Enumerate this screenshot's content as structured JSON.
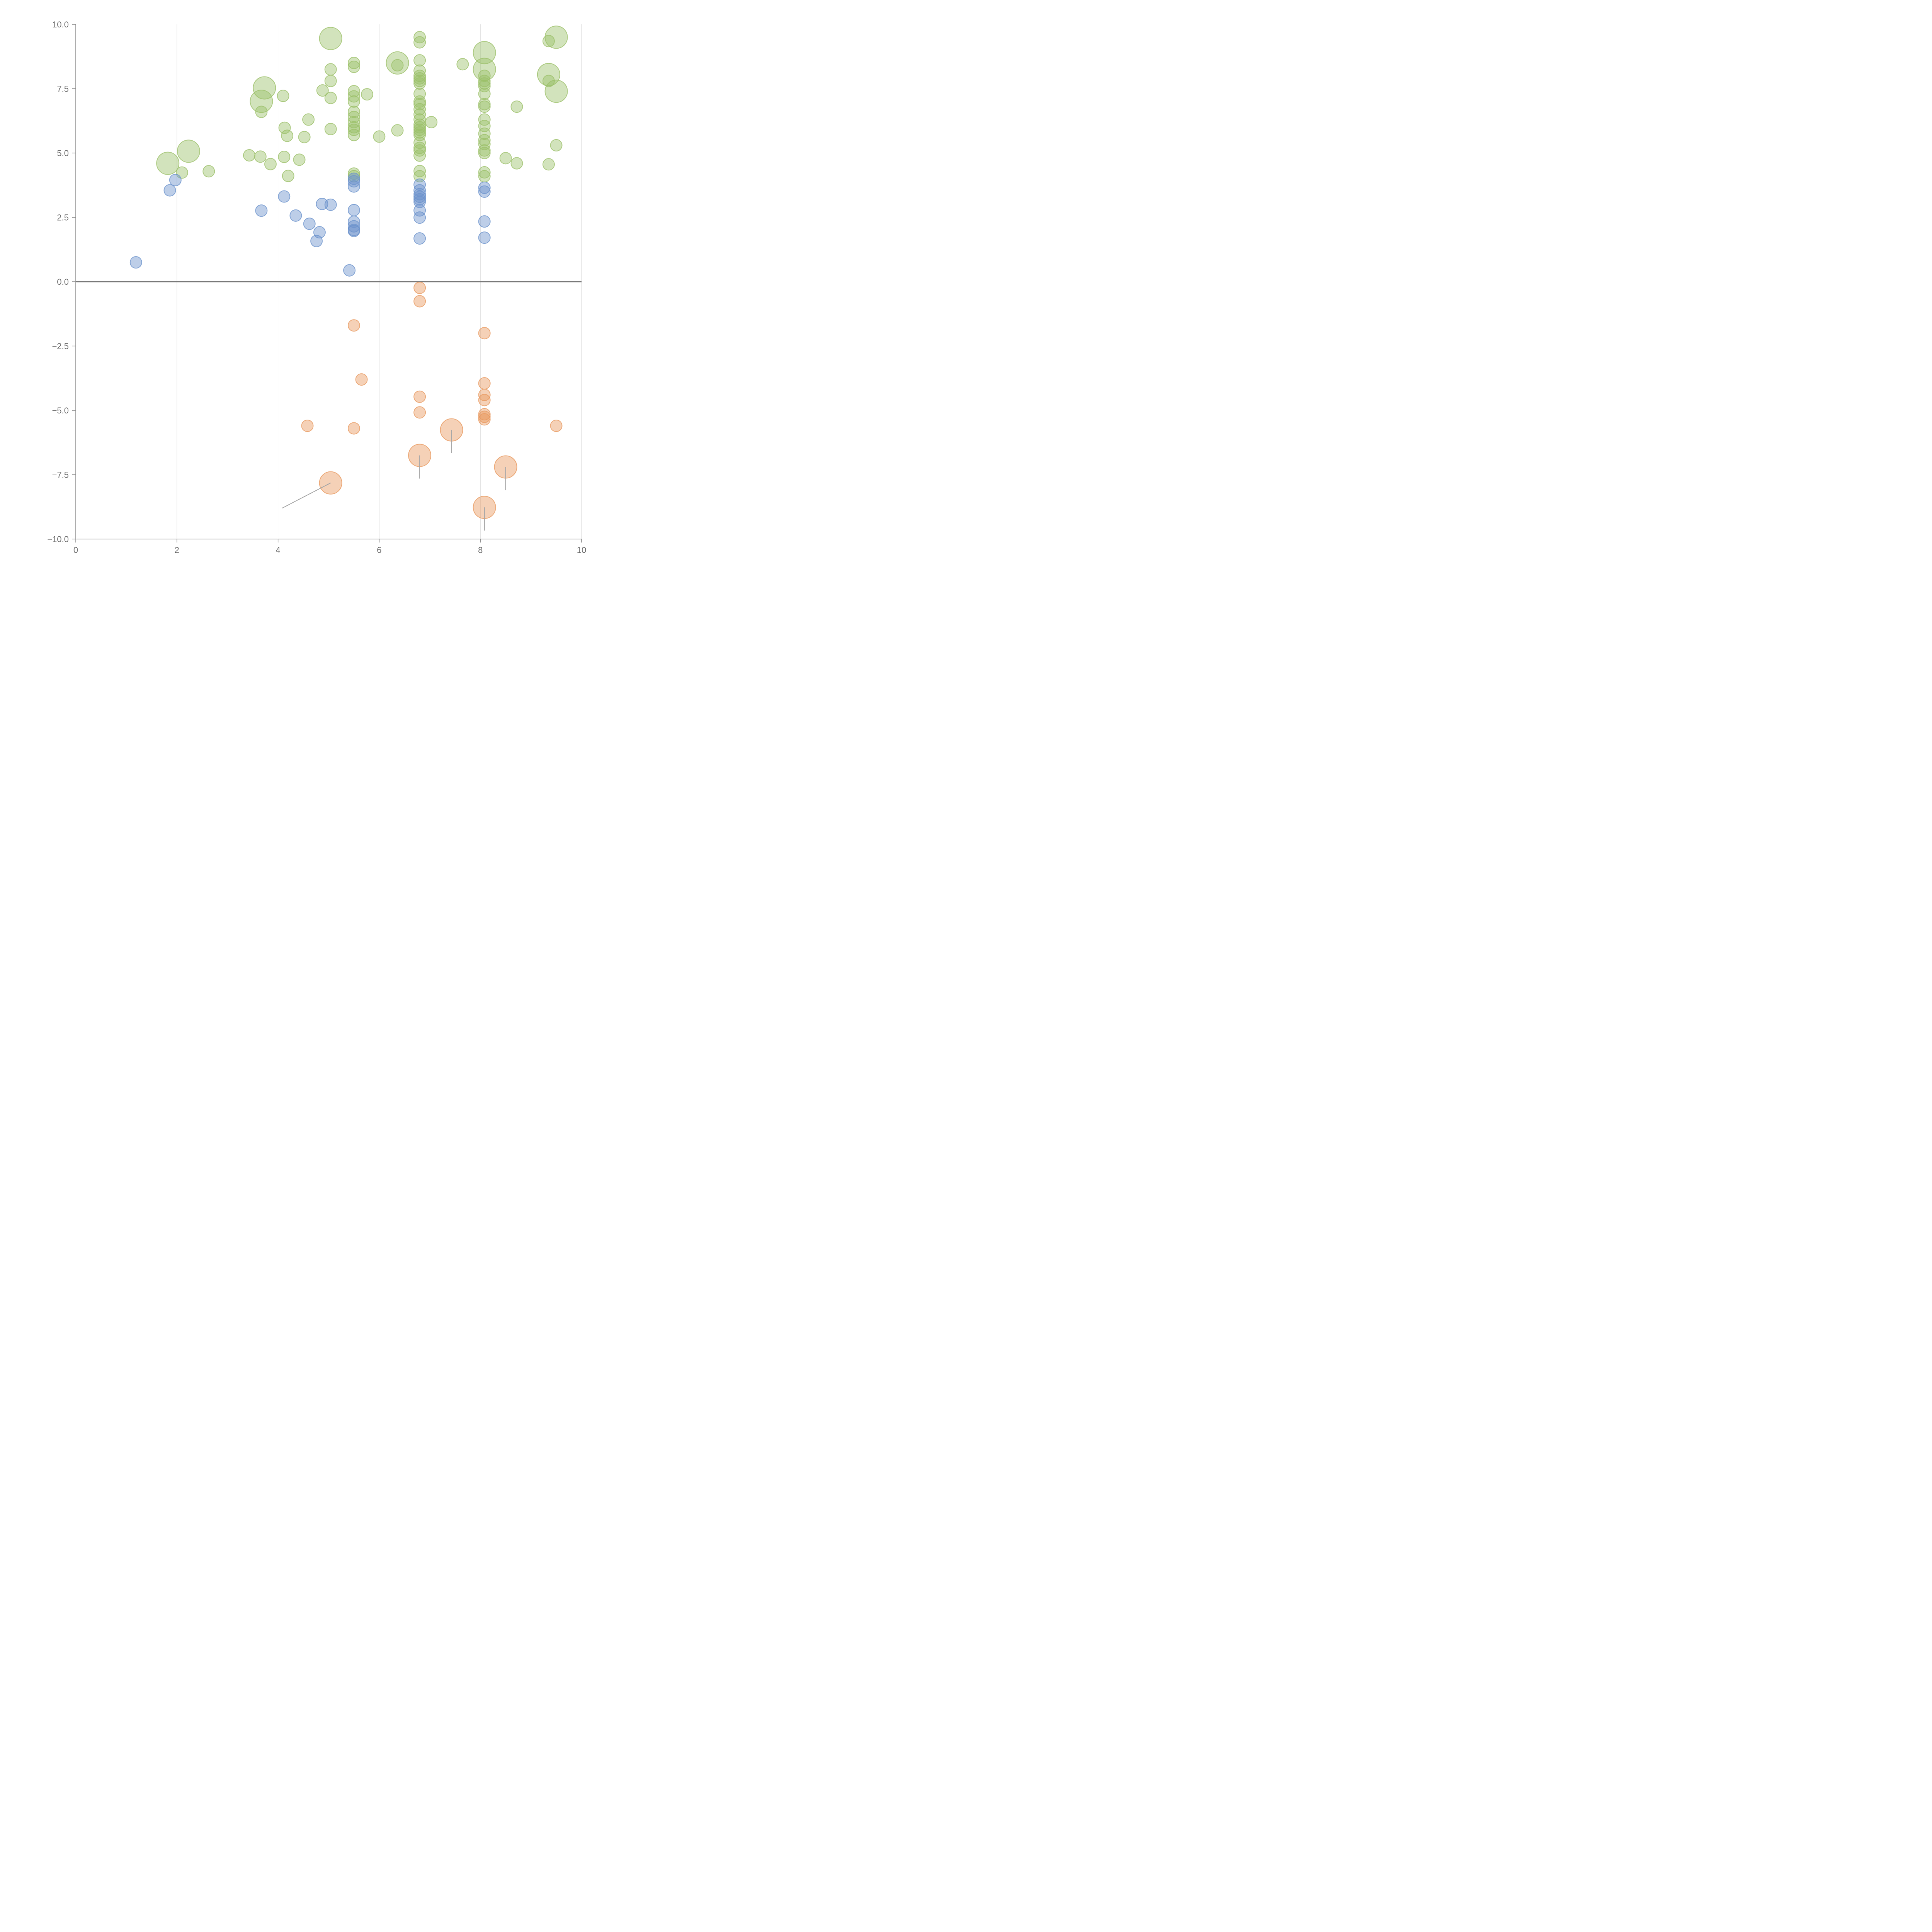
{
  "chart_data": {
    "type": "scatter",
    "title": "",
    "xlabel": "",
    "ylabel": "",
    "xlim": [
      0,
      10
    ],
    "ylim": [
      -10,
      10
    ],
    "x_ticks": [
      0,
      2,
      4,
      6,
      8,
      10
    ],
    "y_ticks": [
      -10,
      -7.5,
      -5,
      -2.5,
      0,
      2.5,
      5,
      7.5,
      10
    ],
    "x_tick_labels": [
      "0",
      "2",
      "4",
      "6",
      "8",
      "10"
    ],
    "y_tick_labels": [
      "−10.0",
      "−7.5",
      "−5.0",
      "−2.5",
      "0.0",
      "2.5",
      "5.0",
      "7.5",
      "10.0"
    ],
    "grid": "vertical lines at x ticks",
    "legend": "none",
    "zero_line": true,
    "colors": {
      "green": "#9cc06a",
      "blue": "#6c93cc",
      "orange": "#e89a60",
      "grid": "#d8d8d8",
      "axis": "#8a8a8a",
      "tick_text": "#6f6f6f"
    },
    "series": [
      {
        "color_key": "green",
        "points": [
          [
            1.82,
            4.6,
            2
          ],
          [
            2.23,
            5.07,
            2
          ],
          [
            2.1,
            4.24,
            1
          ],
          [
            2.63,
            4.29,
            1
          ],
          [
            3.43,
            4.91,
            1
          ],
          [
            3.65,
            4.86,
            1
          ],
          [
            3.85,
            4.57,
            1
          ],
          [
            3.67,
            6.6,
            1
          ],
          [
            3.67,
            7.01,
            2
          ],
          [
            3.73,
            7.53,
            2
          ],
          [
            4.1,
            7.22,
            1
          ],
          [
            4.12,
            4.85,
            1
          ],
          [
            4.2,
            4.11,
            1
          ],
          [
            4.13,
            5.98,
            1
          ],
          [
            4.18,
            5.67,
            1
          ],
          [
            4.42,
            4.74,
            1
          ],
          [
            4.52,
            5.62,
            1
          ],
          [
            4.6,
            6.3,
            1
          ],
          [
            4.88,
            7.43,
            1
          ],
          [
            5.04,
            9.45,
            2
          ],
          [
            5.04,
            8.25,
            1
          ],
          [
            5.04,
            7.8,
            1
          ],
          [
            5.04,
            7.14,
            1
          ],
          [
            5.04,
            5.93,
            1
          ],
          [
            5.5,
            8.5,
            1
          ],
          [
            5.5,
            8.35,
            1
          ],
          [
            5.5,
            7.4,
            1
          ],
          [
            5.5,
            7.2,
            1
          ],
          [
            5.5,
            7.0,
            1
          ],
          [
            5.5,
            6.6,
            1
          ],
          [
            5.5,
            6.4,
            1
          ],
          [
            5.5,
            6.2,
            1
          ],
          [
            5.5,
            6.0,
            1
          ],
          [
            5.5,
            5.9,
            1
          ],
          [
            5.5,
            5.7,
            1
          ],
          [
            5.5,
            4.2,
            1
          ],
          [
            5.5,
            4.1,
            1
          ],
          [
            5.76,
            7.28,
            1
          ],
          [
            6.0,
            5.64,
            1
          ],
          [
            6.36,
            8.5,
            2
          ],
          [
            6.36,
            8.41,
            1
          ],
          [
            6.36,
            5.88,
            1
          ],
          [
            6.8,
            9.5,
            1
          ],
          [
            6.8,
            9.3,
            1
          ],
          [
            6.8,
            8.6,
            1
          ],
          [
            6.8,
            8.2,
            1
          ],
          [
            6.8,
            8.0,
            1
          ],
          [
            6.8,
            7.9,
            1
          ],
          [
            6.8,
            7.8,
            1
          ],
          [
            6.8,
            7.7,
            1
          ],
          [
            6.8,
            7.3,
            1
          ],
          [
            6.8,
            7.0,
            1
          ],
          [
            6.8,
            6.9,
            1
          ],
          [
            6.8,
            6.7,
            1
          ],
          [
            6.8,
            6.5,
            1
          ],
          [
            6.8,
            6.3,
            1
          ],
          [
            6.8,
            6.1,
            1
          ],
          [
            6.8,
            6.0,
            1
          ],
          [
            6.8,
            5.9,
            1
          ],
          [
            6.8,
            5.8,
            1
          ],
          [
            6.8,
            5.7,
            1
          ],
          [
            6.8,
            5.4,
            1
          ],
          [
            6.8,
            5.2,
            1
          ],
          [
            6.8,
            5.1,
            1
          ],
          [
            6.8,
            4.9,
            1
          ],
          [
            6.8,
            4.3,
            1
          ],
          [
            6.8,
            4.1,
            1
          ],
          [
            7.03,
            6.2,
            1
          ],
          [
            7.65,
            8.45,
            1
          ],
          [
            8.08,
            8.9,
            2
          ],
          [
            8.08,
            8.25,
            2
          ],
          [
            8.08,
            8.0,
            1
          ],
          [
            8.08,
            7.8,
            1
          ],
          [
            8.08,
            7.7,
            1
          ],
          [
            8.08,
            7.6,
            1
          ],
          [
            8.08,
            7.3,
            1
          ],
          [
            8.08,
            6.9,
            1
          ],
          [
            8.08,
            6.8,
            1
          ],
          [
            8.08,
            6.3,
            1
          ],
          [
            8.08,
            6.05,
            1
          ],
          [
            8.08,
            5.75,
            1
          ],
          [
            8.08,
            5.5,
            1
          ],
          [
            8.08,
            5.35,
            1
          ],
          [
            8.08,
            5.1,
            1
          ],
          [
            8.08,
            5.0,
            1
          ],
          [
            8.08,
            4.25,
            1
          ],
          [
            8.08,
            4.1,
            1
          ],
          [
            8.5,
            4.8,
            1
          ],
          [
            8.72,
            4.6,
            1
          ],
          [
            8.72,
            6.8,
            1
          ],
          [
            9.35,
            9.35,
            1
          ],
          [
            9.35,
            8.05,
            2
          ],
          [
            9.35,
            7.8,
            1
          ],
          [
            9.35,
            4.56,
            1
          ],
          [
            9.5,
            9.5,
            2
          ],
          [
            9.5,
            7.4,
            2
          ],
          [
            9.5,
            5.3,
            1
          ]
        ]
      },
      {
        "color_key": "blue",
        "points": [
          [
            1.19,
            0.75,
            1
          ],
          [
            1.86,
            3.55,
            1
          ],
          [
            1.97,
            3.95,
            1
          ],
          [
            3.67,
            2.76,
            1
          ],
          [
            4.12,
            3.31,
            1
          ],
          [
            4.35,
            2.57,
            1
          ],
          [
            4.62,
            2.25,
            1
          ],
          [
            4.76,
            1.58,
            1
          ],
          [
            4.82,
            1.92,
            1
          ],
          [
            4.87,
            3.02,
            1
          ],
          [
            5.04,
            2.99,
            1
          ],
          [
            5.41,
            0.44,
            1
          ],
          [
            5.5,
            4.0,
            1
          ],
          [
            5.5,
            3.9,
            1
          ],
          [
            5.5,
            3.7,
            1
          ],
          [
            5.5,
            2.78,
            1
          ],
          [
            5.5,
            2.33,
            1
          ],
          [
            5.5,
            2.15,
            1
          ],
          [
            5.5,
            2.01,
            1
          ],
          [
            5.5,
            1.97,
            1
          ],
          [
            6.8,
            3.77,
            1
          ],
          [
            6.8,
            3.55,
            1
          ],
          [
            6.8,
            3.4,
            1
          ],
          [
            6.8,
            3.3,
            1
          ],
          [
            6.8,
            3.2,
            1
          ],
          [
            6.8,
            3.1,
            1
          ],
          [
            6.8,
            2.77,
            1
          ],
          [
            6.8,
            2.49,
            1
          ],
          [
            6.8,
            1.68,
            1
          ],
          [
            8.08,
            3.65,
            1
          ],
          [
            8.08,
            3.5,
            1
          ],
          [
            8.08,
            2.34,
            1
          ],
          [
            8.08,
            1.71,
            1
          ]
        ]
      },
      {
        "color_key": "orange",
        "points": [
          [
            6.8,
            -0.24,
            1
          ],
          [
            6.8,
            -0.76,
            1
          ],
          [
            5.5,
            -1.7,
            1
          ],
          [
            8.08,
            -2.0,
            1
          ],
          [
            5.65,
            -3.8,
            1
          ],
          [
            8.08,
            -3.95,
            1
          ],
          [
            8.08,
            -4.4,
            1
          ],
          [
            8.08,
            -4.6,
            1
          ],
          [
            6.8,
            -4.47,
            1
          ],
          [
            6.8,
            -5.08,
            1
          ],
          [
            8.08,
            -5.15,
            1
          ],
          [
            8.08,
            -5.25,
            1
          ],
          [
            8.08,
            -5.35,
            1
          ],
          [
            4.58,
            -5.6,
            1
          ],
          [
            5.5,
            -5.7,
            1
          ],
          [
            9.5,
            -5.6,
            1
          ],
          [
            7.43,
            -5.76,
            2
          ],
          [
            6.8,
            -6.75,
            2
          ],
          [
            8.5,
            -7.2,
            2
          ],
          [
            5.04,
            -7.82,
            2
          ],
          [
            8.08,
            -8.77,
            2
          ]
        ]
      }
    ]
  }
}
